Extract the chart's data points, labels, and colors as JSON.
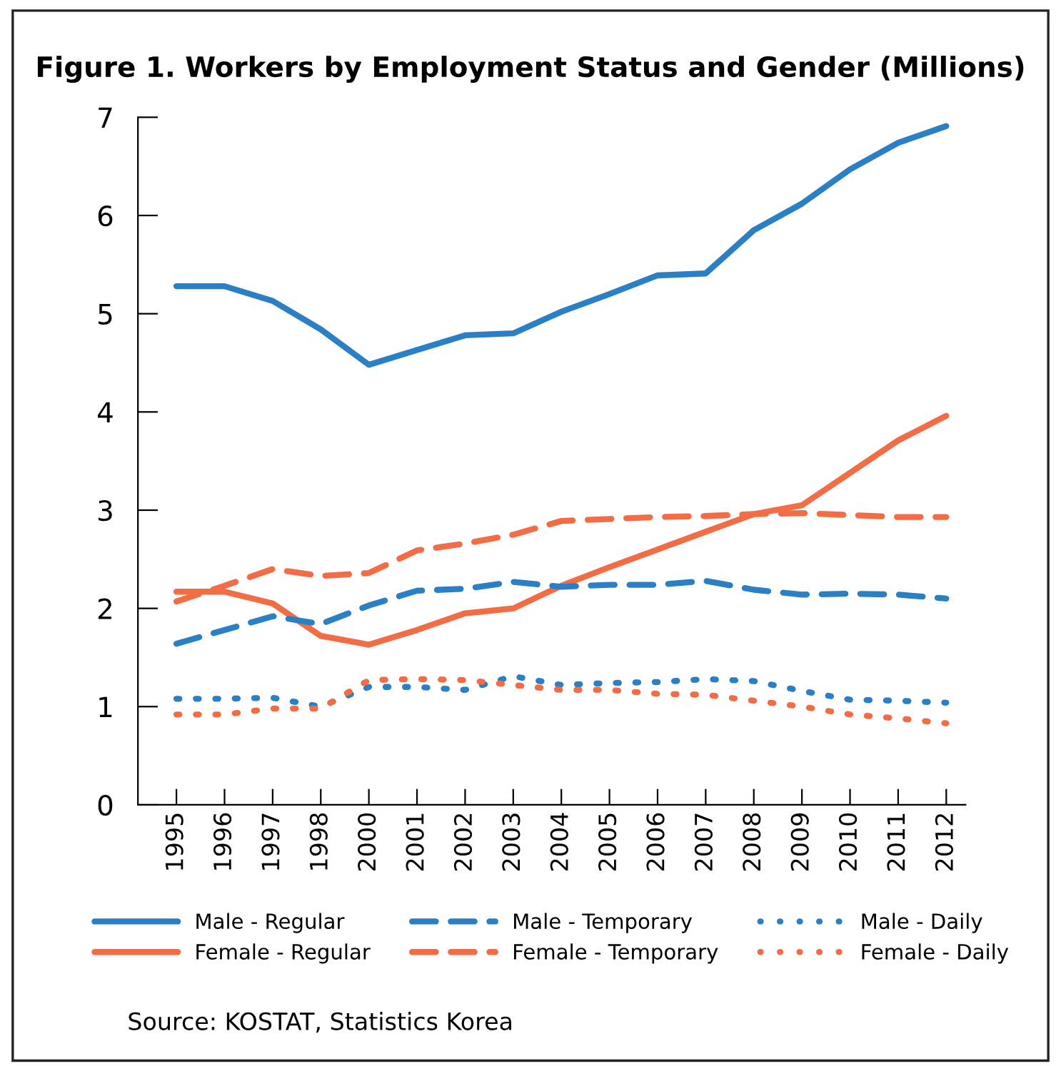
{
  "chart_data": {
    "type": "line",
    "title": "Figure 1. Workers by Employment Status and Gender (Millions)",
    "categories": [
      "1995",
      "1996",
      "1997",
      "1998",
      "2000",
      "2001",
      "2002",
      "2003",
      "2004",
      "2005",
      "2006",
      "2007",
      "2008",
      "2009",
      "2010",
      "2011",
      "2012"
    ],
    "series": [
      {
        "name": "Male - Regular",
        "color": "#2b7fc4",
        "line_style": "solid",
        "values": [
          5.28,
          5.28,
          5.13,
          4.84,
          4.48,
          4.63,
          4.78,
          4.8,
          5.02,
          5.2,
          5.39,
          5.41,
          5.85,
          6.12,
          6.47,
          6.74,
          6.91
        ]
      },
      {
        "name": "Female - Regular",
        "color": "#f26d45",
        "line_style": "solid",
        "values": [
          2.17,
          2.17,
          2.05,
          1.72,
          1.63,
          1.78,
          1.95,
          2.0,
          2.23,
          2.42,
          2.6,
          2.78,
          2.96,
          3.05,
          3.38,
          3.71,
          3.96
        ]
      },
      {
        "name": "Male - Temporary",
        "color": "#2b7fc4",
        "line_style": "dashed",
        "values": [
          1.64,
          1.78,
          1.92,
          1.84,
          2.03,
          2.18,
          2.2,
          2.27,
          2.22,
          2.24,
          2.24,
          2.28,
          2.19,
          2.14,
          2.15,
          2.14,
          2.1
        ]
      },
      {
        "name": "Female - Temporary",
        "color": "#f26d45",
        "line_style": "dashed",
        "values": [
          2.07,
          2.23,
          2.4,
          2.33,
          2.36,
          2.59,
          2.66,
          2.75,
          2.89,
          2.91,
          2.93,
          2.94,
          2.96,
          2.97,
          2.95,
          2.93,
          2.93
        ]
      },
      {
        "name": "Male - Daily",
        "color": "#2b7fc4",
        "line_style": "dotted",
        "values": [
          1.08,
          1.08,
          1.09,
          1.0,
          1.2,
          1.2,
          1.17,
          1.31,
          1.22,
          1.24,
          1.25,
          1.28,
          1.26,
          1.16,
          1.07,
          1.06,
          1.04
        ]
      },
      {
        "name": "Female - Daily",
        "color": "#f26d45",
        "line_style": "dotted",
        "values": [
          0.92,
          0.92,
          0.98,
          0.98,
          1.27,
          1.28,
          1.27,
          1.22,
          1.17,
          1.17,
          1.13,
          1.12,
          1.06,
          1.0,
          0.92,
          0.88,
          0.83
        ]
      }
    ],
    "ylim": [
      0,
      7
    ],
    "yticks": [
      0,
      1,
      2,
      3,
      4,
      5,
      6,
      7
    ],
    "grid": false,
    "legend": "bottom",
    "marker": "none",
    "annotations": [
      "Source: KOSTAT, Statistics Korea"
    ]
  }
}
